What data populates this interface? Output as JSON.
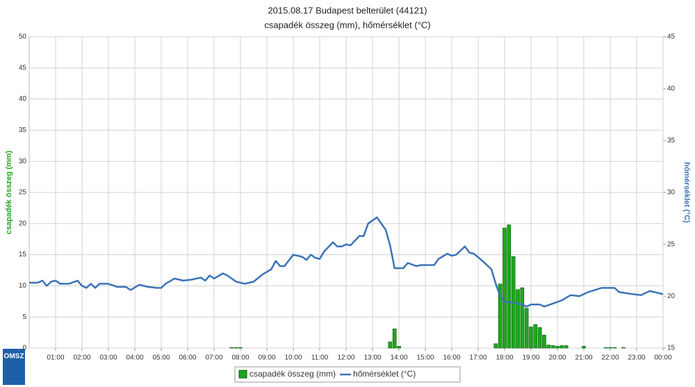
{
  "chart_data": {
    "type": "bar-line",
    "title": "2015.08.17 Budapest belterület (44121)",
    "subtitle": "csapadék összeg (mm), hőmérséklet (°C)",
    "ylabel": "csapadék összeg (mm)",
    "y2label": "hőmérséklet (°C)",
    "logo": "OMSZ",
    "grid": true,
    "legend": "bottom",
    "xlim": [
      0,
      1440
    ],
    "xticks": [
      {
        "value": 60,
        "label": "01:00"
      },
      {
        "value": 120,
        "label": "02:00"
      },
      {
        "value": 180,
        "label": "03:00"
      },
      {
        "value": 240,
        "label": "04:00"
      },
      {
        "value": 300,
        "label": "05:00"
      },
      {
        "value": 360,
        "label": "06:00"
      },
      {
        "value": 420,
        "label": "07:00"
      },
      {
        "value": 480,
        "label": "08:00"
      },
      {
        "value": 540,
        "label": "09:00"
      },
      {
        "value": 600,
        "label": "10:00"
      },
      {
        "value": 660,
        "label": "11:00"
      },
      {
        "value": 720,
        "label": "12:00"
      },
      {
        "value": 780,
        "label": "13:00"
      },
      {
        "value": 840,
        "label": "14:00"
      },
      {
        "value": 900,
        "label": "15:00"
      },
      {
        "value": 960,
        "label": "16:00"
      },
      {
        "value": 1020,
        "label": "17:00"
      },
      {
        "value": 1080,
        "label": "18:00"
      },
      {
        "value": 1140,
        "label": "19:00"
      },
      {
        "value": 1200,
        "label": "20:00"
      },
      {
        "value": 1260,
        "label": "21:00"
      },
      {
        "value": 1320,
        "label": "22:00"
      },
      {
        "value": 1380,
        "label": "23:00"
      },
      {
        "value": 1440,
        "label": "00:00"
      }
    ],
    "ylim": [
      0,
      50
    ],
    "yticks": [
      0,
      5,
      10,
      15,
      20,
      25,
      30,
      35,
      40,
      45,
      50
    ],
    "y2lim": [
      15,
      45
    ],
    "y2ticks": [
      15,
      20,
      25,
      30,
      35,
      40,
      45
    ],
    "series": [
      {
        "name": "csapadék összeg (mm)",
        "type": "bar",
        "axis": "y",
        "color": "#1ea61e",
        "x": [
          460,
          470,
          480,
          820,
          830,
          840,
          1060,
          1070,
          1080,
          1090,
          1100,
          1110,
          1120,
          1130,
          1140,
          1150,
          1160,
          1170,
          1180,
          1190,
          1200,
          1210,
          1220,
          1260,
          1310,
          1320,
          1330,
          1350
        ],
        "values": [
          0.1,
          0.1,
          0.1,
          1.0,
          3.1,
          0.3,
          0.7,
          10.3,
          19.3,
          19.8,
          14.7,
          9.4,
          9.7,
          6.4,
          3.4,
          3.8,
          3.3,
          2.1,
          0.5,
          0.4,
          0.3,
          0.4,
          0.4,
          0.3,
          0.1,
          0.1,
          0.1,
          0.1
        ]
      },
      {
        "name": "hőmérséklet (°C)",
        "type": "line",
        "axis": "y2",
        "color": "#3c72b8",
        "x": [
          0,
          20,
          30,
          40,
          50,
          60,
          70,
          90,
          110,
          120,
          130,
          140,
          150,
          160,
          180,
          200,
          220,
          230,
          250,
          270,
          290,
          300,
          310,
          330,
          350,
          370,
          390,
          400,
          410,
          420,
          440,
          450,
          470,
          490,
          510,
          530,
          550,
          560,
          570,
          580,
          600,
          620,
          630,
          640,
          650,
          660,
          670,
          690,
          700,
          710,
          720,
          730,
          750,
          760,
          770,
          790,
          810,
          820,
          830,
          850,
          860,
          880,
          890,
          910,
          920,
          930,
          950,
          960,
          970,
          990,
          1000,
          1010,
          1030,
          1050,
          1060,
          1070,
          1080,
          1090,
          1100,
          1120,
          1130,
          1140,
          1160,
          1170,
          1190,
          1210,
          1230,
          1250,
          1270,
          1300,
          1330,
          1340,
          1370,
          1390,
          1410,
          1440
        ],
        "values": [
          21.3,
          21.3,
          21.5,
          21.0,
          21.4,
          21.5,
          21.2,
          21.2,
          21.5,
          21.0,
          20.8,
          21.2,
          20.8,
          21.2,
          21.2,
          20.9,
          20.9,
          20.6,
          21.1,
          20.9,
          20.8,
          20.8,
          21.2,
          21.7,
          21.5,
          21.6,
          21.8,
          21.5,
          22.0,
          21.7,
          22.2,
          22.0,
          21.4,
          21.2,
          21.4,
          22.1,
          22.6,
          23.4,
          22.9,
          22.9,
          24.0,
          23.8,
          23.5,
          24.0,
          23.7,
          23.6,
          24.3,
          25.2,
          24.8,
          24.8,
          25.0,
          24.9,
          25.8,
          25.8,
          27.0,
          27.6,
          26.4,
          24.9,
          22.7,
          22.7,
          23.2,
          22.9,
          23.0,
          23.0,
          23.0,
          23.6,
          24.1,
          23.9,
          24.0,
          24.8,
          24.2,
          24.1,
          23.4,
          22.6,
          21.2,
          20.0,
          19.5,
          19.4,
          19.4,
          19.2,
          19.0,
          19.2,
          19.2,
          19.0,
          19.3,
          19.6,
          20.1,
          20.0,
          20.4,
          20.8,
          20.8,
          20.4,
          20.2,
          20.1,
          20.5,
          20.2
        ]
      }
    ]
  }
}
